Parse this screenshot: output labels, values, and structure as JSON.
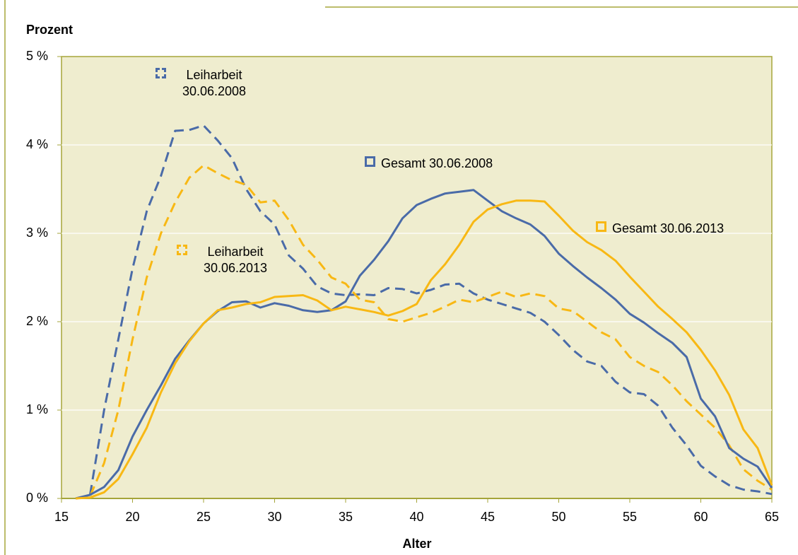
{
  "chart_data": {
    "type": "line",
    "ylabel": "Prozent",
    "xlabel": "Alter",
    "x": [
      16,
      17,
      18,
      19,
      20,
      21,
      22,
      23,
      24,
      25,
      26,
      27,
      28,
      29,
      30,
      31,
      32,
      33,
      34,
      35,
      36,
      37,
      38,
      39,
      40,
      41,
      42,
      43,
      44,
      45,
      46,
      47,
      48,
      49,
      50,
      51,
      52,
      53,
      54,
      55,
      56,
      57,
      58,
      59,
      60,
      61,
      62,
      63,
      64,
      65
    ],
    "series": [
      {
        "name": "Leiharbeit 30.06.2008",
        "color": "#4a6ba8",
        "style": "dashed",
        "values": [
          0,
          0.03,
          1.0,
          1.8,
          2.6,
          3.25,
          3.65,
          4.16,
          4.17,
          4.22,
          4.05,
          3.85,
          3.5,
          3.25,
          3.1,
          2.75,
          2.6,
          2.4,
          2.32,
          2.3,
          2.31,
          2.3,
          2.38,
          2.37,
          2.32,
          2.36,
          2.42,
          2.43,
          2.32,
          2.25,
          2.2,
          2.15,
          2.1,
          2.0,
          1.85,
          1.68,
          1.55,
          1.5,
          1.32,
          1.2,
          1.18,
          1.05,
          0.8,
          0.6,
          0.37,
          0.25,
          0.15,
          0.1,
          0.08,
          0.05
        ]
      },
      {
        "name": "Leiharbeit 30.06.2013",
        "color": "#f8b814",
        "style": "dashed",
        "values": [
          0,
          0.02,
          0.4,
          1.0,
          1.8,
          2.5,
          3.0,
          3.35,
          3.63,
          3.77,
          3.68,
          3.6,
          3.55,
          3.35,
          3.37,
          3.15,
          2.87,
          2.7,
          2.5,
          2.43,
          2.25,
          2.22,
          2.03,
          2.0,
          2.05,
          2.1,
          2.17,
          2.25,
          2.22,
          2.28,
          2.34,
          2.28,
          2.32,
          2.29,
          2.15,
          2.12,
          2.0,
          1.88,
          1.8,
          1.6,
          1.5,
          1.43,
          1.28,
          1.1,
          0.95,
          0.8,
          0.6,
          0.33,
          0.2,
          0.1
        ]
      },
      {
        "name": "Gesamt 30.06.2008",
        "color": "#4a6ba8",
        "style": "solid",
        "values": [
          0,
          0.04,
          0.13,
          0.32,
          0.7,
          1.0,
          1.28,
          1.58,
          1.79,
          1.98,
          2.12,
          2.22,
          2.23,
          2.16,
          2.21,
          2.18,
          2.13,
          2.11,
          2.13,
          2.23,
          2.52,
          2.7,
          2.91,
          3.17,
          3.32,
          3.39,
          3.45,
          3.47,
          3.49,
          3.37,
          3.25,
          3.17,
          3.1,
          2.97,
          2.77,
          2.63,
          2.5,
          2.38,
          2.25,
          2.09,
          1.99,
          1.87,
          1.76,
          1.6,
          1.13,
          0.93,
          0.57,
          0.45,
          0.36,
          0.12
        ]
      },
      {
        "name": "Gesamt 30.06.2013",
        "color": "#f8b814",
        "style": "solid",
        "values": [
          0,
          0.01,
          0.07,
          0.22,
          0.5,
          0.8,
          1.2,
          1.53,
          1.78,
          1.98,
          2.13,
          2.16,
          2.2,
          2.22,
          2.28,
          2.29,
          2.3,
          2.24,
          2.13,
          2.17,
          2.14,
          2.11,
          2.07,
          2.12,
          2.2,
          2.47,
          2.65,
          2.87,
          3.13,
          3.27,
          3.33,
          3.37,
          3.37,
          3.36,
          3.2,
          3.03,
          2.9,
          2.81,
          2.69,
          2.51,
          2.34,
          2.17,
          2.03,
          1.88,
          1.68,
          1.45,
          1.17,
          0.78,
          0.57,
          0.15
        ]
      }
    ],
    "xlim": [
      15,
      65
    ],
    "xticks": [
      15,
      20,
      25,
      30,
      35,
      40,
      45,
      50,
      55,
      60,
      65
    ],
    "ylim": [
      0,
      5
    ],
    "yticks": [
      {
        "value": 0,
        "label": "0 %"
      },
      {
        "value": 1,
        "label": "1 %"
      },
      {
        "value": 2,
        "label": "2 %"
      },
      {
        "value": 3,
        "label": "3 %"
      },
      {
        "value": 4,
        "label": "4 %"
      },
      {
        "value": 5,
        "label": "5 %"
      }
    ],
    "grid": true
  }
}
